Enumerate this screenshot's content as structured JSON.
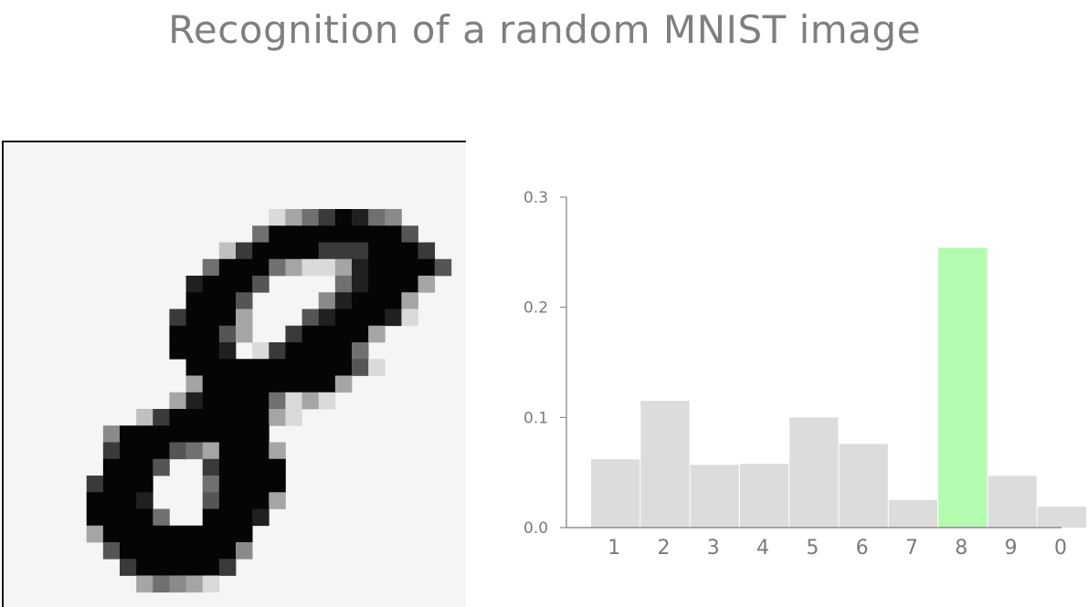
{
  "title": "Recognition of a random MNIST image",
  "digit_image": {
    "label": "handwritten digit 8 (MNIST sample)"
  },
  "chart_data": {
    "type": "bar",
    "title": "",
    "xlabel": "",
    "ylabel": "",
    "categories": [
      "1",
      "2",
      "3",
      "4",
      "5",
      "6",
      "7",
      "8",
      "9",
      "0"
    ],
    "values": [
      0.062,
      0.115,
      0.057,
      0.058,
      0.1,
      0.076,
      0.025,
      0.254,
      0.047,
      0.019
    ],
    "ylim": [
      0,
      0.3
    ],
    "yticks": [
      "0.0",
      "0.1",
      "0.2",
      "0.3"
    ],
    "yticks_values": [
      0.0,
      0.1,
      0.2,
      0.3
    ],
    "highlight_category": "8",
    "colors": {
      "bar": "#dcdcdc",
      "highlight": "#b2fbaf",
      "axis": "#7a7a7a",
      "title": "#7f7f7f"
    },
    "grid": false
  }
}
